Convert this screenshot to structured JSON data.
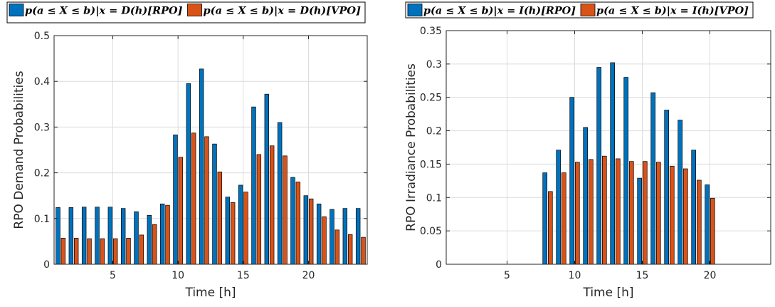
{
  "colors": {
    "rpo": "#0072BD",
    "vpo": "#D95319",
    "grid": "#dcdcdc",
    "axis": "#262626"
  },
  "chart_data": [
    {
      "type": "bar",
      "ylabel": "RPO Demand Probabilities",
      "xlabel": "Time [h]",
      "xlim": [
        0.5,
        24.5
      ],
      "ylim": [
        0,
        0.5
      ],
      "xticks": [
        5,
        10,
        15,
        20
      ],
      "yticks": [
        0,
        0.1,
        0.2,
        0.3,
        0.4,
        0.5
      ],
      "ytick_labels": [
        "0",
        "0.1",
        "0.2",
        "0.3",
        "0.4",
        "0.5"
      ],
      "grid": true,
      "legend": {
        "placement": "top",
        "entries": [
          "p(a ≤ X ≤ b)|x = D(h)[RPO]",
          "p(a ≤ X ≤ b)|x = D(h)[VPO]"
        ]
      },
      "x": [
        1,
        2,
        3,
        4,
        5,
        6,
        7,
        8,
        9,
        10,
        11,
        12,
        13,
        14,
        15,
        16,
        17,
        18,
        19,
        20,
        21,
        22,
        23,
        24
      ],
      "series": [
        {
          "name": "p(a ≤ X ≤ b)|x = D(h)[RPO]",
          "color": "rpo",
          "values": [
            0.124,
            0.124,
            0.125,
            0.125,
            0.125,
            0.122,
            0.115,
            0.107,
            0.132,
            0.283,
            0.395,
            0.427,
            0.263,
            0.147,
            0.173,
            0.344,
            0.372,
            0.31,
            0.19,
            0.15,
            0.132,
            0.12,
            0.122,
            0.122
          ]
        },
        {
          "name": "p(a ≤ X ≤ b)|x = D(h)[VPO]",
          "color": "vpo",
          "values": [
            0.057,
            0.057,
            0.056,
            0.056,
            0.056,
            0.057,
            0.064,
            0.087,
            0.129,
            0.234,
            0.287,
            0.279,
            0.202,
            0.135,
            0.158,
            0.24,
            0.259,
            0.237,
            0.18,
            0.143,
            0.104,
            0.075,
            0.065,
            0.059
          ]
        }
      ]
    },
    {
      "type": "bar",
      "ylabel": "RPO Irradiance Probabilities",
      "xlabel": "Time [h]",
      "xlim": [
        0.5,
        24.5
      ],
      "ylim": [
        0,
        0.35
      ],
      "xticks": [
        5,
        10,
        15,
        20
      ],
      "yticks": [
        0,
        0.05,
        0.1,
        0.15,
        0.2,
        0.25,
        0.3,
        0.35
      ],
      "ytick_labels": [
        "0",
        "0.05",
        "0.1",
        "0.15",
        "0.2",
        "0.25",
        "0.3",
        "0.35"
      ],
      "grid": true,
      "legend": {
        "placement": "top",
        "entries": [
          "p(a ≤ X ≤ b)|x = I(h)[RPO]",
          "p(a ≤ X ≤ b)|x = I(h)[VPO]"
        ]
      },
      "x": [
        8,
        9,
        10,
        11,
        12,
        13,
        14,
        15,
        16,
        17,
        18,
        19,
        20
      ],
      "series": [
        {
          "name": "p(a ≤ X ≤ b)|x = I(h)[RPO]",
          "color": "rpo",
          "values": [
            0.137,
            0.171,
            0.25,
            0.205,
            0.295,
            0.302,
            0.28,
            0.129,
            0.257,
            0.231,
            0.216,
            0.171,
            0.119
          ]
        },
        {
          "name": "p(a ≤ X ≤ b)|x = I(h)[VPO]",
          "color": "vpo",
          "values": [
            0.109,
            0.137,
            0.153,
            0.157,
            0.162,
            0.158,
            0.154,
            0.154,
            0.153,
            0.147,
            0.143,
            0.126,
            0.099
          ]
        }
      ]
    }
  ]
}
